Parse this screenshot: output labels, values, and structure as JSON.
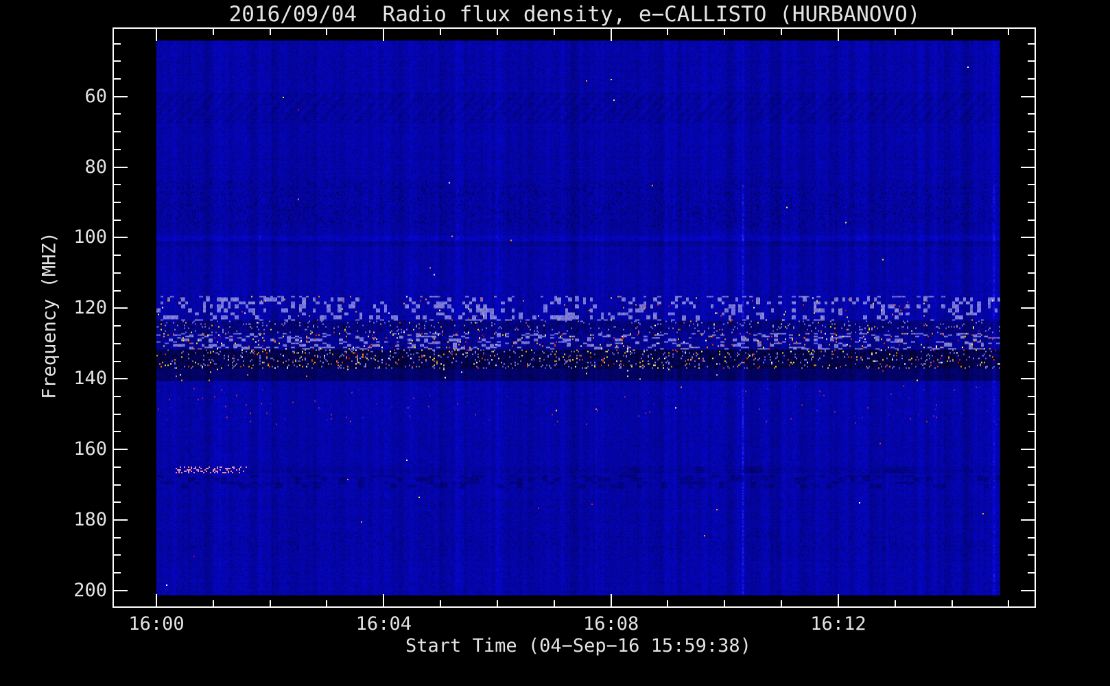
{
  "title": "2016/09/04  Radio flux density, e−CALLISTO (HURBANOVO)",
  "axes": {
    "x_label": "Start Time (04−Sep−16 15:59:38)",
    "y_label": "Frequency (MHZ)",
    "x_ticks": [
      {
        "label": "16:00",
        "minute": 0
      },
      {
        "label": "16:04",
        "minute": 4
      },
      {
        "label": "16:08",
        "minute": 8
      },
      {
        "label": "16:12",
        "minute": 12
      }
    ],
    "y_ticks": [
      {
        "label": "60",
        "mhz": 60
      },
      {
        "label": "80",
        "mhz": 80
      },
      {
        "label": "100",
        "mhz": 100
      },
      {
        "label": "120",
        "mhz": 120
      },
      {
        "label": "140",
        "mhz": 140
      },
      {
        "label": "160",
        "mhz": 160
      },
      {
        "label": "180",
        "mhz": 180
      },
      {
        "label": "200",
        "mhz": 200
      }
    ]
  },
  "chart_data": {
    "type": "heatmap",
    "title": "2016/09/04  Radio flux density, e−CALLISTO (HURBANOVO)",
    "xlabel": "Start Time (04−Sep−16 15:59:38)",
    "ylabel": "Frequency (MHZ)",
    "instrument": "e-CALLISTO (HURBANOVO)",
    "date": "2016/09/04",
    "start_time": "15:59:38",
    "x_axis": {
      "start_label": "16:00",
      "major_tick_minutes": [
        0,
        4,
        8,
        12
      ],
      "minor_tick_step_minutes": 1,
      "span_minutes": 14.85
    },
    "y_axis": {
      "top_mhz": 44.1,
      "bottom_mhz": 201.4,
      "major_ticks_mhz": [
        60,
        80,
        100,
        120,
        140,
        160,
        180,
        200
      ],
      "minor_tick_step_mhz": 5,
      "inverted": true
    },
    "palette": {
      "base_blue": "#1414b4",
      "hot": [
        "#ffffff",
        "#ffe822",
        "#ff9900",
        "#ee3300",
        "#bb0044"
      ],
      "pink": "#e88cb4",
      "sparse": [
        "#8a2a7a",
        "#a03030"
      ],
      "frame": "#ffffff",
      "text": "#e4e4e4",
      "background": "#000000"
    },
    "bands": [
      {
        "f0": 59.0,
        "f1": 67.5,
        "type": "ripple",
        "label": "wavy ripple interference near 60-67 MHz"
      },
      {
        "f0": 84.0,
        "f1": 97.0,
        "type": "texture",
        "density": 0.3,
        "strength": 0.28,
        "label": "fine dark speckle texture 84-97 MHz"
      },
      {
        "f0": 99.2,
        "f1": 100.9,
        "type": "lighten",
        "amount": 0.1,
        "label": "bright horizontal line at 100 MHz"
      },
      {
        "f0": 100.9,
        "f1": 102.6,
        "type": "darken",
        "amount": 0.1,
        "label": "dark line just below 100 MHz"
      },
      {
        "f0": 116.5,
        "f1": 123.5,
        "type": "speckle",
        "hot": 0.006,
        "dark": 0.08,
        "label": "scattered bursts and lavender patches 117-123 MHz"
      },
      {
        "f0": 123.5,
        "f1": 127.0,
        "type": "band-dark",
        "base": -0.18,
        "dark": 0.3,
        "hot": 0.012,
        "light": 0.05,
        "label": "dark textured band 124-127 MHz"
      },
      {
        "f0": 127.0,
        "f1": 131.8,
        "type": "band-active",
        "base": -0.08,
        "dark": 0.22,
        "hot": 0.03,
        "label": "active burst band 127-132 MHz"
      },
      {
        "f0": 131.8,
        "f1": 137.2,
        "type": "band-core",
        "base": -0.38,
        "dark": 0.4,
        "hot": 0.035,
        "light": 0.06,
        "label": "darkest core band with intense bursts 132-137 MHz"
      },
      {
        "f0": 137.2,
        "f1": 140.8,
        "type": "band-lane",
        "base": -0.33,
        "hot": 0.003,
        "label": "smooth dark lane 137-141 MHz"
      },
      {
        "f0": 142.0,
        "f1": 153.0,
        "type": "sparse",
        "hot": 0.0035,
        "light": 0.012,
        "label": "sparse faint purple/red speckles 142-153 MHz"
      },
      {
        "f0": 146.5,
        "f1": 147.5,
        "type": "darken",
        "amount": 0.06,
        "label": "faint dark line 147 MHz"
      },
      {
        "f0": 164.8,
        "f1": 166.9,
        "type": "pink",
        "t0": 0.35,
        "t1": 1.6,
        "density": 0.3,
        "label": "pink dashes near 166 MHz at 16:00-16:01"
      },
      {
        "f0": 167.0,
        "f1": 171.2,
        "type": "mottle",
        "strength": 0.2,
        "label": "mottled dark segments 167-171 MHz"
      },
      {
        "f0": 174.0,
        "f1": 177.0,
        "type": "sparse-red",
        "t0": 6.2,
        "t1": 8.6,
        "density": 0.003,
        "label": "sparse red dots near 175 MHz around 16:07"
      },
      {
        "f0": 183.5,
        "f1": 188.5,
        "type": "texture",
        "density": 0.22,
        "strength": 0.18,
        "label": "weak dark speckle texture 184-188 MHz"
      }
    ],
    "vertical_streaks_minutes": [
      {
        "t": 10.32,
        "s": 0.3
      },
      {
        "t": 14.72,
        "s": 0.22
      },
      {
        "t": 6.0,
        "s": 0.12
      },
      {
        "t": 7.72,
        "s": 0.1
      },
      {
        "t": 11.9,
        "s": 0.1
      },
      {
        "t": 9.1,
        "s": 0.09
      },
      {
        "t": 12.85,
        "s": 0.09
      },
      {
        "t": 2.95,
        "s": 0.08
      },
      {
        "t": 5.3,
        "s": 0.08
      },
      {
        "t": 1.8,
        "s": 0.07
      }
    ]
  }
}
